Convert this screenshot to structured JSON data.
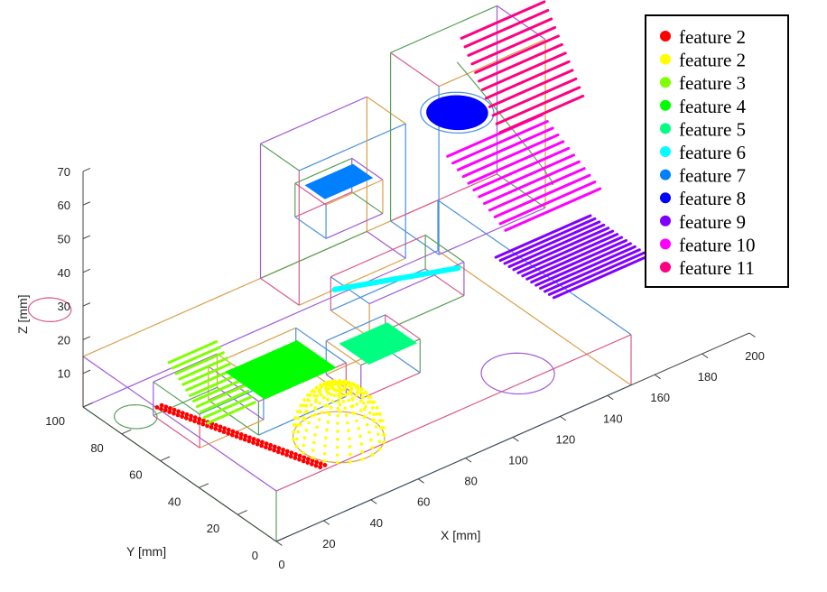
{
  "chart_data": {
    "type": "scatter",
    "title": "",
    "xlabel": "X [mm]",
    "ylabel": "Y [mm]",
    "zlabel": "Z [mm]",
    "xlim": [
      0,
      200
    ],
    "ylim": [
      0,
      100
    ],
    "zlim": [
      0,
      70
    ],
    "x_ticks": [
      "0",
      "20",
      "40",
      "60",
      "80",
      "100",
      "120",
      "140",
      "160",
      "180",
      "200"
    ],
    "y_ticks": [
      "0",
      "20",
      "40",
      "60",
      "80",
      "100"
    ],
    "z_ticks": [
      "10",
      "20",
      "30",
      "40",
      "50",
      "60",
      "70"
    ],
    "legend_position": "top-right",
    "series": [
      {
        "name": "feature 2",
        "color": "#ff0000",
        "shape": "line-slot",
        "x": [
          20,
          40
        ],
        "y": [
          25,
          85
        ],
        "z": [
          0,
          0
        ]
      },
      {
        "name": "feature 2",
        "color": "#ffff00",
        "shape": "hemisphere",
        "center": [
          55,
          35,
          0
        ],
        "radius": 15
      },
      {
        "name": "feature 3",
        "color": "#80ff00",
        "shape": "inclined-ribs",
        "x": [
          20,
          40
        ],
        "y": [
          60,
          80
        ],
        "z": [
          5,
          15
        ]
      },
      {
        "name": "feature 4",
        "color": "#00ff00",
        "shape": "pocket",
        "x": [
          40,
          70
        ],
        "y": [
          55,
          75
        ],
        "z": [
          8,
          8
        ]
      },
      {
        "name": "feature 5",
        "color": "#00ff80",
        "shape": "pocket",
        "x": [
          80,
          100
        ],
        "y": [
          50,
          65
        ],
        "z": [
          8,
          8
        ]
      },
      {
        "name": "feature 6",
        "color": "#00ffff",
        "shape": "slot",
        "x": [
          90,
          130
        ],
        "y": [
          65,
          80
        ],
        "z": [
          15,
          15
        ]
      },
      {
        "name": "feature 7",
        "color": "#0080ff",
        "shape": "pocket",
        "x": [
          90,
          110
        ],
        "y": [
          85,
          95
        ],
        "z": [
          40,
          40
        ]
      },
      {
        "name": "feature 8",
        "color": "#0000ff",
        "shape": "hole",
        "center": [
          150,
          90,
          45
        ],
        "radius": 10
      },
      {
        "name": "feature 9",
        "color": "#8000ff",
        "shape": "ribs",
        "x": [
          150,
          190
        ],
        "y": [
          40,
          70
        ],
        "z": [
          10,
          10
        ]
      },
      {
        "name": "feature 10",
        "color": "#ff00ff",
        "shape": "curved-ribs",
        "x": [
          150,
          190
        ],
        "y": [
          65,
          95
        ],
        "z": [
          20,
          30
        ]
      },
      {
        "name": "feature 11",
        "color": "#ff0080",
        "shape": "inclined-ribs",
        "x": [
          160,
          195
        ],
        "y": [
          80,
          100
        ],
        "z": [
          40,
          60
        ]
      }
    ]
  }
}
